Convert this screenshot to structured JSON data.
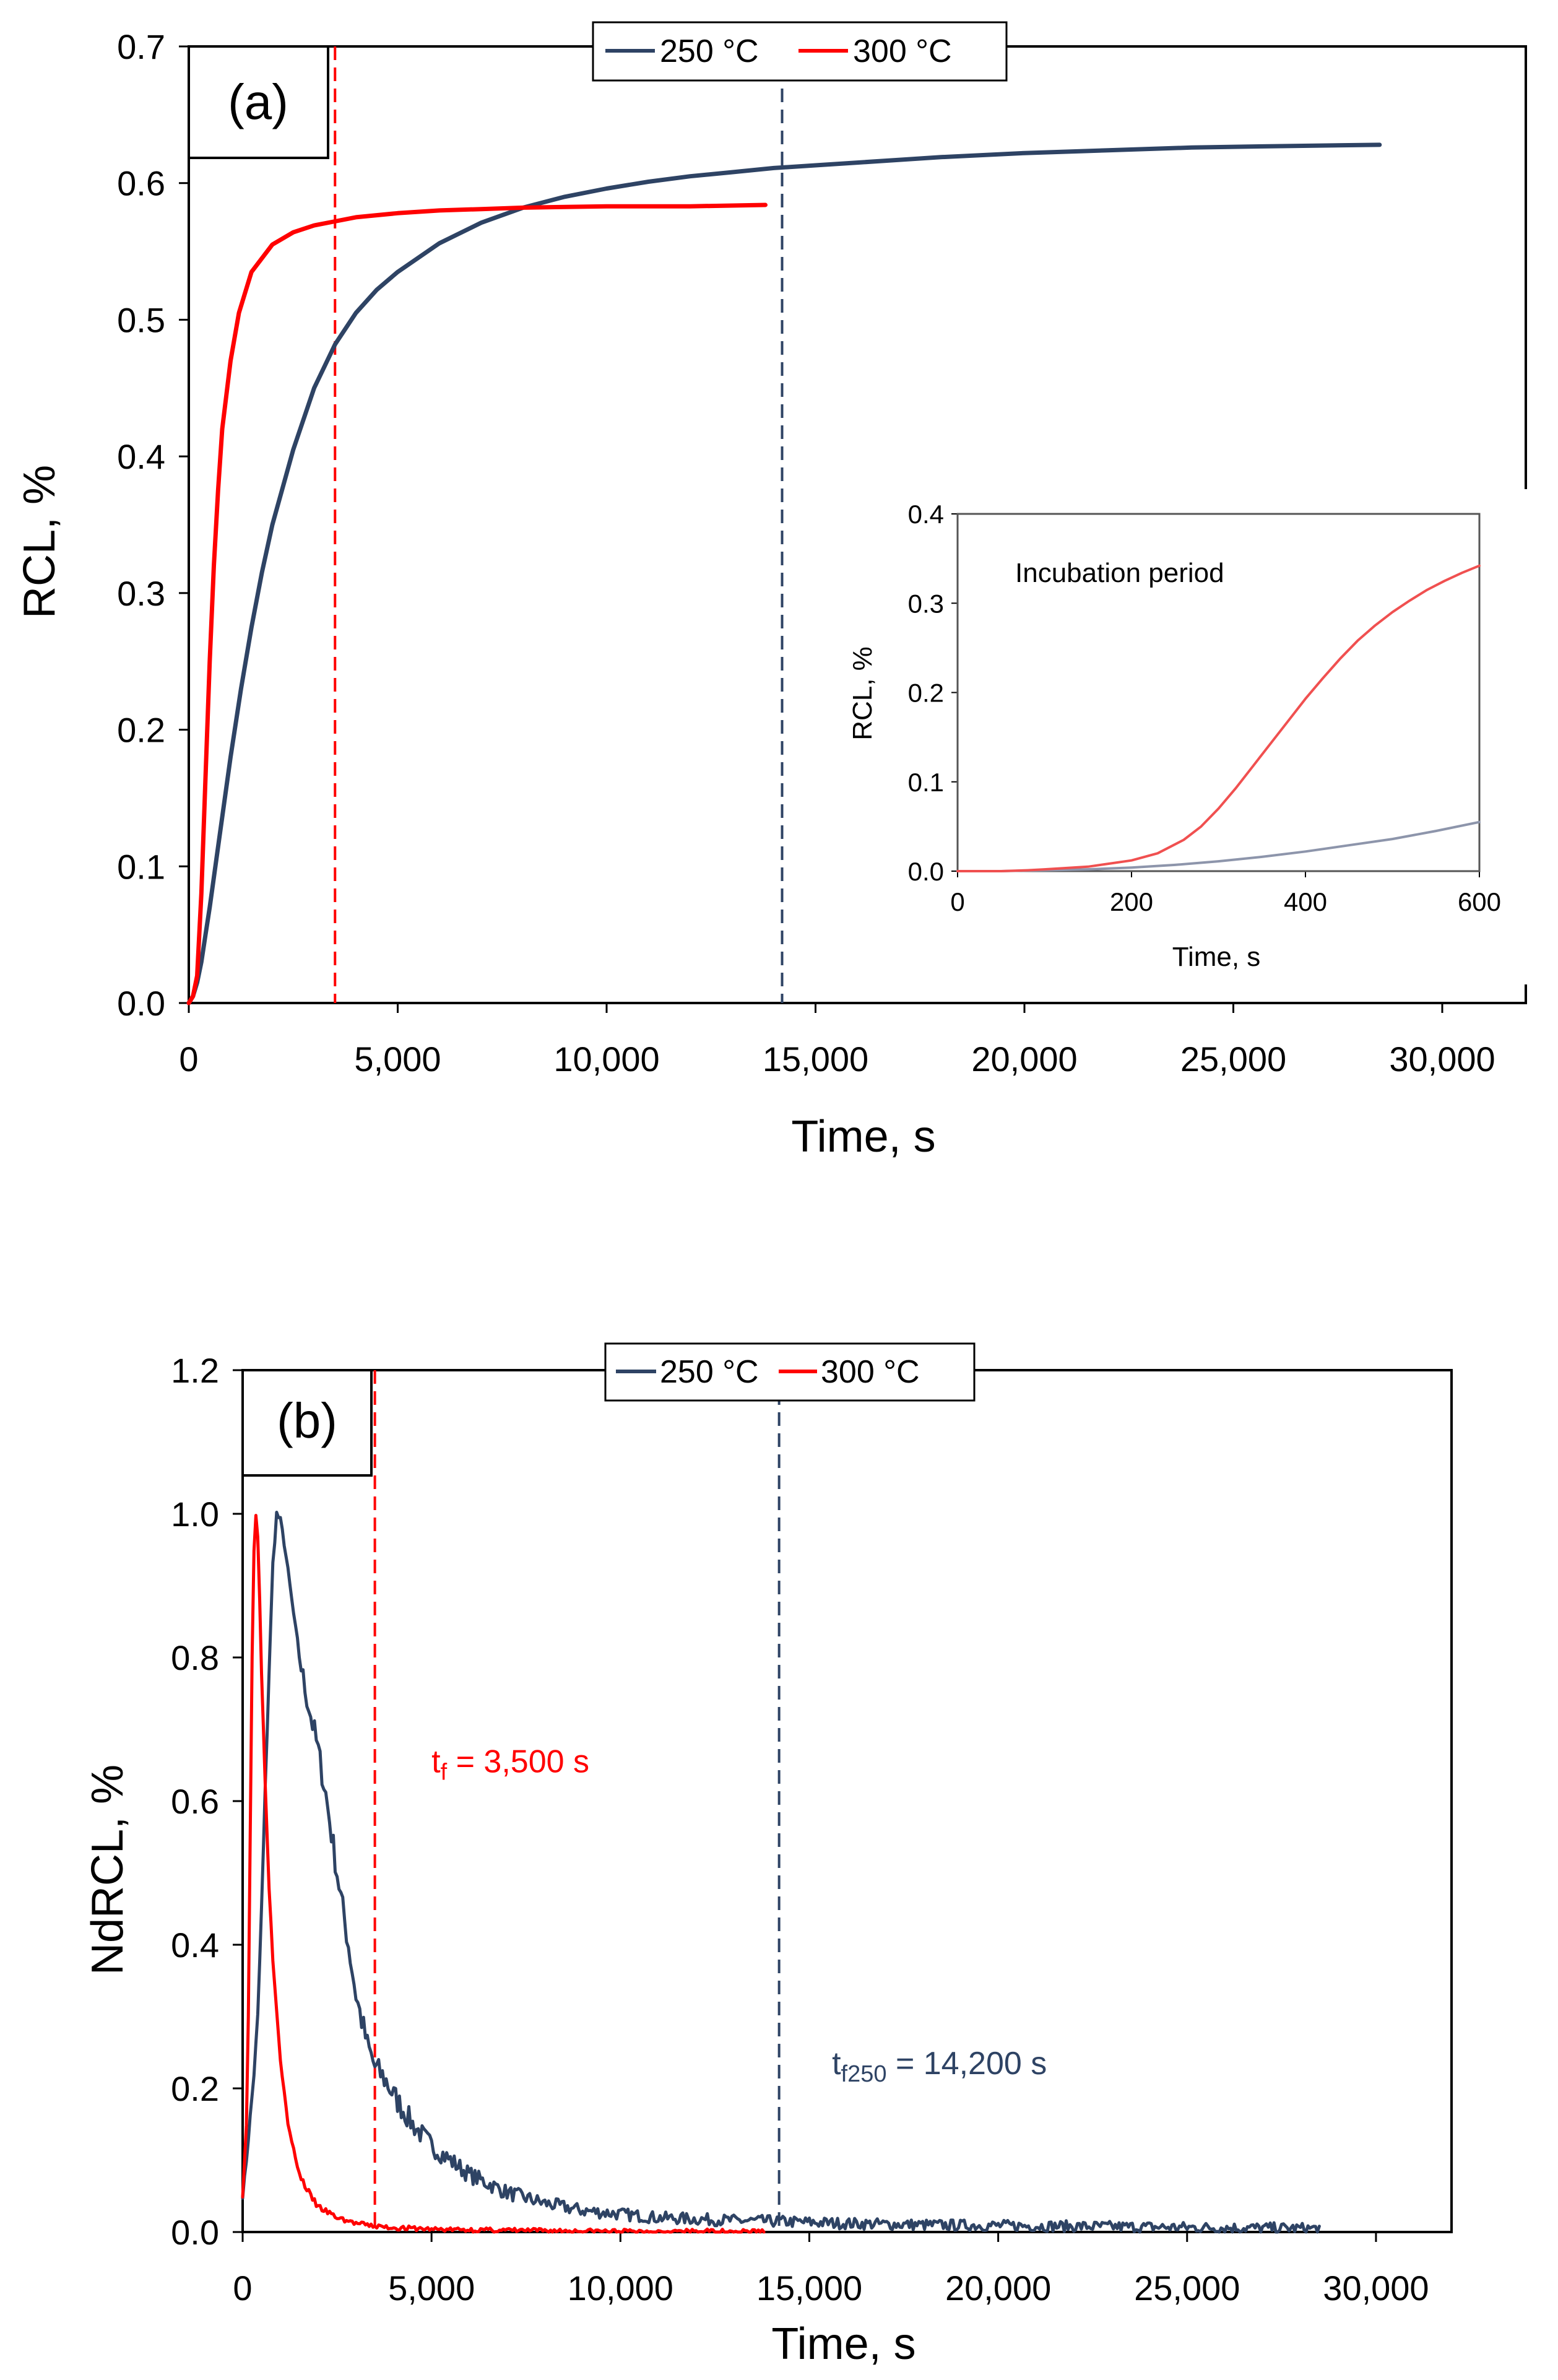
{
  "colors": {
    "s250": "#2e4364",
    "s300": "#ff0000",
    "s250_inset": "#8d95ab",
    "s300_inset": "#f05050",
    "axis": "#000000"
  },
  "chart_data": [
    {
      "id": "a",
      "type": "line",
      "panel_label": "(a)",
      "xlabel": "Time, s",
      "ylabel": "RCL, %",
      "xlim": [
        0,
        32000
      ],
      "ylim": [
        0,
        0.7
      ],
      "xticks": [
        0,
        5000,
        10000,
        15000,
        20000,
        25000,
        30000
      ],
      "xtick_labels": [
        "0",
        "5,000",
        "10,000",
        "15,000",
        "20,000",
        "25,000",
        "30,000"
      ],
      "yticks": [
        0,
        0.1,
        0.2,
        0.3,
        0.4,
        0.5,
        0.6,
        0.7
      ],
      "ytick_labels": [
        "0.0",
        "0.1",
        "0.2",
        "0.3",
        "0.4",
        "0.5",
        "0.6",
        "0.7"
      ],
      "legend": [
        {
          "name": "250 °C",
          "color": "#2e4364"
        },
        {
          "name": "300 °C",
          "color": "#ff0000"
        }
      ],
      "legend_position": "top-center",
      "vlines": [
        {
          "x": 3500,
          "series": "300 °C"
        },
        {
          "x": 14200,
          "series": "250 °C"
        }
      ],
      "series": [
        {
          "name": "250 °C",
          "x": [
            0,
            100,
            200,
            300,
            400,
            500,
            750,
            1000,
            1250,
            1500,
            1750,
            2000,
            2500,
            3000,
            3500,
            4000,
            4500,
            5000,
            6000,
            7000,
            8000,
            9000,
            10000,
            11000,
            12000,
            13000,
            14000,
            15000,
            16000,
            18000,
            20000,
            22000,
            24000,
            26000,
            28500
          ],
          "values": [
            0,
            0.005,
            0.015,
            0.03,
            0.05,
            0.07,
            0.125,
            0.18,
            0.23,
            0.275,
            0.315,
            0.35,
            0.405,
            0.45,
            0.482,
            0.505,
            0.522,
            0.535,
            0.556,
            0.571,
            0.582,
            0.59,
            0.596,
            0.601,
            0.605,
            0.608,
            0.611,
            0.613,
            0.615,
            0.619,
            0.622,
            0.624,
            0.626,
            0.627,
            0.628
          ]
        },
        {
          "name": "300 °C",
          "x": [
            0,
            100,
            200,
            300,
            400,
            500,
            600,
            700,
            800,
            1000,
            1200,
            1500,
            2000,
            2500,
            3000,
            3500,
            4000,
            5000,
            6000,
            7000,
            8000,
            10000,
            12000,
            13800
          ],
          "values": [
            0,
            0.005,
            0.02,
            0.08,
            0.165,
            0.25,
            0.32,
            0.375,
            0.42,
            0.47,
            0.505,
            0.535,
            0.555,
            0.564,
            0.569,
            0.572,
            0.575,
            0.578,
            0.58,
            0.581,
            0.582,
            0.583,
            0.583,
            0.584
          ]
        }
      ]
    },
    {
      "id": "a-inset",
      "type": "line",
      "title": "Incubation period",
      "xlabel": "Time, s",
      "ylabel": "RCL, %",
      "xlim": [
        0,
        600
      ],
      "ylim": [
        0,
        0.4
      ],
      "xticks": [
        0,
        200,
        400,
        600
      ],
      "xtick_labels": [
        "0",
        "200",
        "400",
        "600"
      ],
      "yticks": [
        0,
        0.1,
        0.2,
        0.3,
        0.4
      ],
      "ytick_labels": [
        "0.0",
        "0.1",
        "0.2",
        "0.3",
        "0.4"
      ],
      "series": [
        {
          "name": "250 °C",
          "x": [
            0,
            50,
            100,
            150,
            200,
            250,
            300,
            350,
            400,
            450,
            500,
            550,
            600
          ],
          "values": [
            0,
            0,
            0.001,
            0.002,
            0.004,
            0.007,
            0.011,
            0.016,
            0.022,
            0.029,
            0.036,
            0.045,
            0.055
          ]
        },
        {
          "name": "300 °C",
          "x": [
            0,
            50,
            80,
            100,
            150,
            200,
            230,
            260,
            280,
            300,
            320,
            340,
            360,
            380,
            400,
            420,
            440,
            460,
            480,
            500,
            520,
            540,
            560,
            580,
            600
          ],
          "values": [
            0,
            0,
            0.001,
            0.002,
            0.005,
            0.012,
            0.02,
            0.035,
            0.05,
            0.07,
            0.093,
            0.118,
            0.143,
            0.168,
            0.193,
            0.216,
            0.238,
            0.258,
            0.275,
            0.29,
            0.303,
            0.315,
            0.325,
            0.334,
            0.342
          ]
        }
      ]
    },
    {
      "id": "b",
      "type": "line",
      "panel_label": "(b)",
      "xlabel": "Time, s",
      "ylabel": "NdRCL, %",
      "xlim": [
        0,
        32000
      ],
      "ylim": [
        0,
        1.2
      ],
      "xticks": [
        0,
        5000,
        10000,
        15000,
        20000,
        25000,
        30000
      ],
      "xtick_labels": [
        "0",
        "5,000",
        "10,000",
        "15,000",
        "20,000",
        "25,000",
        "30,000"
      ],
      "yticks": [
        0,
        0.2,
        0.4,
        0.6,
        0.8,
        1.0,
        1.2
      ],
      "ytick_labels": [
        "0.0",
        "0.2",
        "0.4",
        "0.6",
        "0.8",
        "1.0",
        "1.2"
      ],
      "legend": [
        {
          "name": "250 °C",
          "color": "#2e4364"
        },
        {
          "name": "300 °C",
          "color": "#ff0000"
        }
      ],
      "legend_position": "top-center",
      "vlines": [
        {
          "x": 3500,
          "series": "300 °C"
        },
        {
          "x": 14200,
          "series": "250 °C"
        }
      ],
      "annotations": [
        {
          "main": "t",
          "sub": "f",
          "rest": " = 3,500 s",
          "color": "#ff0000",
          "x": 5000,
          "y": 0.64
        },
        {
          "main": "t",
          "sub": "f250",
          "rest": " = 14,200 s",
          "color": "#2e4364",
          "x": 15600,
          "y": 0.22
        }
      ],
      "series": [
        {
          "name": "250 °C",
          "noise": 0.012,
          "seed": 7,
          "x": [
            0,
            100,
            200,
            300,
            400,
            500,
            600,
            700,
            800,
            900,
            1000,
            1100,
            1200,
            1400,
            1600,
            1800,
            2000,
            2200,
            2500,
            2800,
            3000,
            3300,
            3500,
            3800,
            4000,
            4500,
            5000,
            5500,
            6000,
            7000,
            8000,
            9000,
            10000,
            11000,
            12000,
            13000,
            14000,
            16000,
            18000,
            20000,
            22000,
            24000,
            26000,
            28500
          ],
          "values": [
            0.05,
            0.1,
            0.16,
            0.22,
            0.3,
            0.45,
            0.62,
            0.78,
            0.93,
            1.0,
            0.99,
            0.96,
            0.92,
            0.84,
            0.77,
            0.72,
            0.67,
            0.61,
            0.5,
            0.4,
            0.33,
            0.26,
            0.23,
            0.21,
            0.19,
            0.15,
            0.12,
            0.1,
            0.08,
            0.055,
            0.04,
            0.03,
            0.025,
            0.02,
            0.018,
            0.016,
            0.015,
            0.012,
            0.01,
            0.009,
            0.008,
            0.007,
            0.006,
            0.005
          ]
        },
        {
          "name": "300 °C",
          "noise": 0.005,
          "seed": 3,
          "x": [
            0,
            100,
            150,
            200,
            250,
            300,
            350,
            400,
            450,
            500,
            600,
            700,
            800,
            1000,
            1200,
            1500,
            1800,
            2000,
            2500,
            3000,
            3500,
            4000,
            5000,
            6000,
            8000,
            10000,
            12000,
            13800
          ],
          "values": [
            0.05,
            0.15,
            0.3,
            0.55,
            0.8,
            0.95,
            1.0,
            0.97,
            0.88,
            0.78,
            0.62,
            0.48,
            0.38,
            0.24,
            0.15,
            0.08,
            0.05,
            0.035,
            0.02,
            0.012,
            0.008,
            0.006,
            0.004,
            0.003,
            0.002,
            0.001,
            0.001,
            0.001
          ]
        }
      ]
    }
  ]
}
